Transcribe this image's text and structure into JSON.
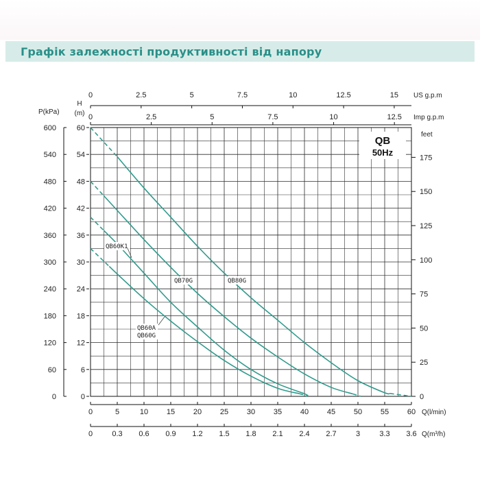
{
  "page": {
    "heading": "Графік залежності продуктивності від напору"
  },
  "chart_data": {
    "type": "line",
    "badge": {
      "line1": "QB",
      "line2": "50Hz"
    },
    "x": {
      "label": "Q(l/min)",
      "range": [
        0,
        60
      ],
      "ticks": [
        0,
        5,
        10,
        15,
        20,
        25,
        30,
        35,
        40,
        45,
        50,
        55,
        60
      ]
    },
    "x_m3h": {
      "label": "Q(m³/h)",
      "range": [
        0,
        3.6
      ],
      "ticks": [
        "0",
        "0.3",
        "0.6",
        "0.9",
        "1.2",
        "1.5",
        "1.8",
        "2.1",
        "2.4",
        "2.7",
        "3",
        "3.3",
        "3.6"
      ]
    },
    "x_us": {
      "label": "US  g.p.m",
      "range": [
        0,
        15.85
      ],
      "ticks": [
        "0",
        "2.5",
        "5",
        "7.5",
        "10",
        "12.5",
        "15"
      ]
    },
    "x_imp": {
      "label": "Imp  g.p.m",
      "range": [
        0,
        13.2
      ],
      "ticks": [
        "0",
        "2.5",
        "5",
        "7.5",
        "10",
        "12.5"
      ]
    },
    "y_m": {
      "label_top": "H",
      "label_bottom": "(m)",
      "range": [
        0,
        60
      ],
      "ticks": [
        "0",
        "6",
        "12",
        "18",
        "24",
        "30",
        "36",
        "42",
        "48",
        "54",
        "60"
      ]
    },
    "y_kpa": {
      "label": "P(kPa)",
      "range": [
        0,
        600
      ],
      "ticks": [
        "0",
        "60",
        "120",
        "180",
        "240",
        "300",
        "360",
        "420",
        "480",
        "540",
        "600"
      ]
    },
    "y_feet": {
      "label": "feet",
      "range": [
        0,
        196.8
      ],
      "ticks": [
        "0",
        "25",
        "50",
        "75",
        "100",
        "125",
        "150",
        "175"
      ]
    },
    "grid": true,
    "color": "#2f9a8c",
    "series": [
      {
        "name": "QB80G",
        "dashed_to_x": 5,
        "solid_to_x": 56,
        "points": [
          [
            0,
            60
          ],
          [
            5,
            53.5
          ],
          [
            10,
            46.5
          ],
          [
            15,
            40
          ],
          [
            20,
            33.5
          ],
          [
            25,
            27.5
          ],
          [
            30,
            22
          ],
          [
            35,
            17
          ],
          [
            40,
            12
          ],
          [
            45,
            7.5
          ],
          [
            50,
            3.5
          ],
          [
            55,
            0.8
          ],
          [
            60,
            0
          ]
        ]
      },
      {
        "name": "QB70G",
        "dashed_to_x": 2.5,
        "solid_to_x": 49,
        "points": [
          [
            0,
            48
          ],
          [
            5,
            41.5
          ],
          [
            10,
            35
          ],
          [
            15,
            28.8
          ],
          [
            20,
            23
          ],
          [
            25,
            17.8
          ],
          [
            30,
            13
          ],
          [
            35,
            8.8
          ],
          [
            40,
            5
          ],
          [
            45,
            2
          ],
          [
            50,
            0.2
          ],
          [
            50.5,
            0
          ]
        ]
      },
      {
        "name": "QB60K1",
        "dashed_to_x": 2.5,
        "solid_to_x": 40,
        "points": [
          [
            0,
            40
          ],
          [
            5,
            34
          ],
          [
            10,
            27.5
          ],
          [
            15,
            21
          ],
          [
            20,
            15.5
          ],
          [
            25,
            10.3
          ],
          [
            30,
            6
          ],
          [
            35,
            2.8
          ],
          [
            40,
            0.6
          ],
          [
            41,
            0
          ]
        ]
      },
      {
        "name": "QB60A",
        "label2": "QB60G",
        "dashed_to_x": 3.5,
        "solid_to_x": 39,
        "points": [
          [
            0,
            33
          ],
          [
            5,
            27.3
          ],
          [
            10,
            21.8
          ],
          [
            15,
            16.8
          ],
          [
            20,
            12.2
          ],
          [
            25,
            8
          ],
          [
            30,
            4.5
          ],
          [
            35,
            1.8
          ],
          [
            40,
            0.3
          ],
          [
            40.5,
            0
          ]
        ]
      }
    ],
    "annotations": [
      "QB60K1",
      "QB70G",
      "QB80G",
      "QB60A",
      "QB60G"
    ]
  }
}
